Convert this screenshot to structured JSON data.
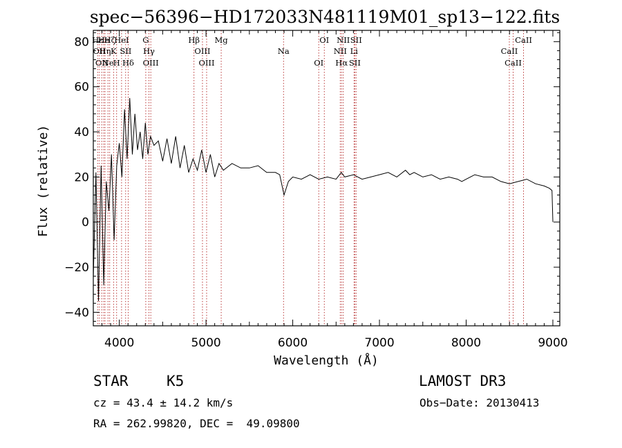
{
  "chart_data": {
    "type": "line",
    "title": "spec−56396−HD172033N481119M01_sp13−122.fits",
    "xlabel": "Wavelength (Å)",
    "ylabel": "Flux (relative)",
    "xlim": [
      3700,
      9080
    ],
    "ylim": [
      -46,
      85
    ],
    "x_ticks": [
      4000,
      5000,
      6000,
      7000,
      8000,
      9000
    ],
    "y_ticks": [
      -40,
      -20,
      0,
      20,
      40,
      60,
      80
    ],
    "y_tick_labels": [
      "−40",
      "−20",
      "0",
      "20",
      "40",
      "60",
      "80"
    ],
    "series": [
      {
        "name": "flux",
        "x": [
          3700,
          3730,
          3760,
          3790,
          3820,
          3850,
          3880,
          3910,
          3940,
          3970,
          4000,
          4030,
          4060,
          4090,
          4120,
          4150,
          4180,
          4210,
          4240,
          4270,
          4300,
          4330,
          4360,
          4400,
          4450,
          4500,
          4550,
          4600,
          4650,
          4700,
          4750,
          4800,
          4850,
          4900,
          4950,
          5000,
          5050,
          5100,
          5150,
          5200,
          5300,
          5400,
          5500,
          5600,
          5700,
          5800,
          5850,
          5900,
          5950,
          6000,
          6100,
          6200,
          6300,
          6400,
          6500,
          6560,
          6600,
          6700,
          6800,
          6900,
          7000,
          7100,
          7200,
          7300,
          7350,
          7400,
          7500,
          7600,
          7700,
          7800,
          7900,
          7950,
          8000,
          8100,
          8200,
          8300,
          8400,
          8500,
          8600,
          8700,
          8800,
          8900,
          8960,
          8990,
          9000
        ],
        "y": [
          -25,
          22,
          -35,
          25,
          -28,
          18,
          5,
          30,
          -8,
          25,
          35,
          20,
          50,
          28,
          55,
          30,
          48,
          32,
          40,
          28,
          44,
          30,
          38,
          34,
          36,
          27,
          37,
          26,
          38,
          24,
          34,
          22,
          28,
          23,
          32,
          22,
          30,
          20,
          26,
          23,
          26,
          24,
          24,
          25,
          22,
          22,
          21,
          12,
          18,
          20,
          19,
          21,
          19,
          20,
          19,
          22,
          20,
          21,
          19,
          20,
          21,
          22,
          20,
          23,
          21,
          22,
          20,
          21,
          19,
          20,
          19,
          18,
          19,
          21,
          20,
          20,
          18,
          17,
          18,
          19,
          17,
          16,
          15,
          14,
          0
        ]
      }
    ],
    "lines": [
      {
        "x": 3750,
        "label": "Hε"
      },
      {
        "x": 3770,
        "label": "OII"
      },
      {
        "x": 3797,
        "label": "OII"
      },
      {
        "x": 3820,
        "label": "He"
      },
      {
        "x": 3835,
        "label": "Hη"
      },
      {
        "x": 3869,
        "label": "Ne"
      },
      {
        "x": 3889,
        "label": "Hζ"
      },
      {
        "x": 3934,
        "label": "K"
      },
      {
        "x": 3969,
        "label": "H"
      },
      {
        "x": 4026,
        "label": "HeI"
      },
      {
        "x": 4073,
        "label": "SII"
      },
      {
        "x": 4102,
        "label": "Hδ"
      },
      {
        "x": 4305,
        "label": "G"
      },
      {
        "x": 4341,
        "label": "Hγ"
      },
      {
        "x": 4363,
        "label": "OIII"
      },
      {
        "x": 4861,
        "label": "Hβ"
      },
      {
        "x": 4959,
        "label": "OIII"
      },
      {
        "x": 5007,
        "label": "OIII"
      },
      {
        "x": 5175,
        "label": "Mg"
      },
      {
        "x": 5894,
        "label": "Na"
      },
      {
        "x": 6300,
        "label": "OI"
      },
      {
        "x": 6364,
        "label": "OI"
      },
      {
        "x": 6548,
        "label": "NII"
      },
      {
        "x": 6563,
        "label": "Hα"
      },
      {
        "x": 6583,
        "label": "NII"
      },
      {
        "x": 6707,
        "label": "Li"
      },
      {
        "x": 6716,
        "label": "SII"
      },
      {
        "x": 6731,
        "label": "SII"
      },
      {
        "x": 8498,
        "label": "CaII"
      },
      {
        "x": 8542,
        "label": "CaII"
      },
      {
        "x": 8662,
        "label": "CaII"
      }
    ]
  },
  "info": {
    "object_class": "STAR",
    "subclass": "K5",
    "survey": "LAMOST DR3",
    "cz": "cz = 43.4 ± 14.2 km/s",
    "obs_date": "Obs−Date: 20130413",
    "radec": "RA = 262.99820, DEC =  49.09800"
  }
}
